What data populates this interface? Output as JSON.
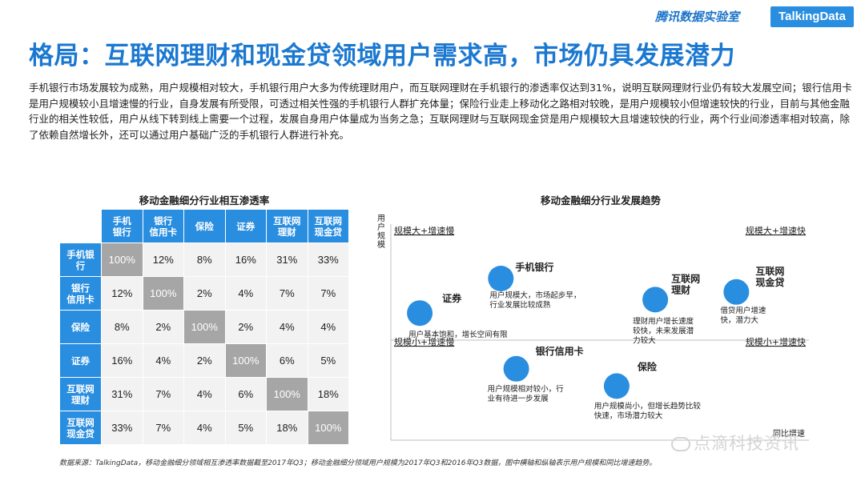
{
  "header": {
    "brand_cn": "腾讯数据实验室",
    "brand_en": "TalkingData"
  },
  "title": "格局：互联网理财和现金贷领域用户需求高，市场仍具发展潜力",
  "paragraph": "手机银行市场发展较为成熟，用户规模相对较大，手机银行用户大多为传统理财用户，而互联网理财在手机银行的渗透率仅达到31%，说明互联网理财行业仍有较大发展空间；银行信用卡是用户规模较小且增速慢的行业，自身发展有所受限，可透过相关性强的手机银行人群扩充体量；保险行业走上移动化之路相对较晚，是用户规模较小但增速较快的行业，目前与其他金融行业的相关性较低，用户从线下转到线上需要一个过程，发展自身用户体量成为当务之急；互联网理财与互联网现金贷是用户规模较大且增速较快的行业，两个行业间渗透率相对较高，除了依赖自然增长外，还可以通过用户基础广泛的手机银行人群进行补充。",
  "matrix": {
    "title": "移动金融细分行业相互渗透率",
    "columns": [
      "手机\n银行",
      "银行\n信用卡",
      "保险",
      "证券",
      "互联网\n理财",
      "互联网\n现金贷"
    ],
    "rows": [
      {
        "label": "手机银\n行",
        "values": [
          "100%",
          "12%",
          "8%",
          "16%",
          "31%",
          "33%"
        ]
      },
      {
        "label": "银行\n信用卡",
        "values": [
          "12%",
          "100%",
          "2%",
          "4%",
          "7%",
          "7%"
        ]
      },
      {
        "label": "保险",
        "values": [
          "8%",
          "2%",
          "100%",
          "2%",
          "4%",
          "4%"
        ]
      },
      {
        "label": "证券",
        "values": [
          "16%",
          "4%",
          "2%",
          "100%",
          "6%",
          "5%"
        ]
      },
      {
        "label": "互联网\n理财",
        "values": [
          "31%",
          "7%",
          "4%",
          "6%",
          "100%",
          "18%"
        ]
      },
      {
        "label": "互联网\n现金贷",
        "values": [
          "33%",
          "7%",
          "4%",
          "5%",
          "18%",
          "100%"
        ]
      }
    ]
  },
  "chart_data": {
    "type": "scatter",
    "title": "移动金融细分行业发展趋势",
    "ylabel": "用户规模",
    "xlabel": "同比增速",
    "quadrants": [
      "规模大+增速慢",
      "规模大+增速快",
      "规模小+增速慢",
      "规模小+增速快"
    ],
    "points": [
      {
        "name": "手机银行",
        "x": 0.26,
        "y": 0.8,
        "note": "用户规模大，市场起步早，\n行业发展比较成熟"
      },
      {
        "name": "证券",
        "x": 0.05,
        "y": 0.62,
        "note": "用户基本饱和，增长空间有限"
      },
      {
        "name": "互联网\n理财",
        "x": 0.66,
        "y": 0.69,
        "note": "理财用户增长速度\n较快，未来发展潜\n力较大"
      },
      {
        "name": "互联网\n现金贷",
        "x": 0.87,
        "y": 0.73,
        "note": "借贷用户增速\n快，潜力大"
      },
      {
        "name": "银行信用卡",
        "x": 0.3,
        "y": 0.33,
        "note": "用户规模相对较小，行\n业有待进一步发展"
      },
      {
        "name": "保险",
        "x": 0.56,
        "y": 0.24,
        "note": "用户规模尚小，但增长趋势比较\n快速，市场潜力较大"
      }
    ],
    "color": "#2a8ee0"
  },
  "footnote": "数据来源：TalkingData，移动金融细分领域相互渗透率数据截至2017年Q3；移动金融细分领域用户规模为2017年Q3和2016年Q3数据，图中横轴和纵轴表示用户规模和同比增速趋势。",
  "watermark": "点滴科技资讯"
}
